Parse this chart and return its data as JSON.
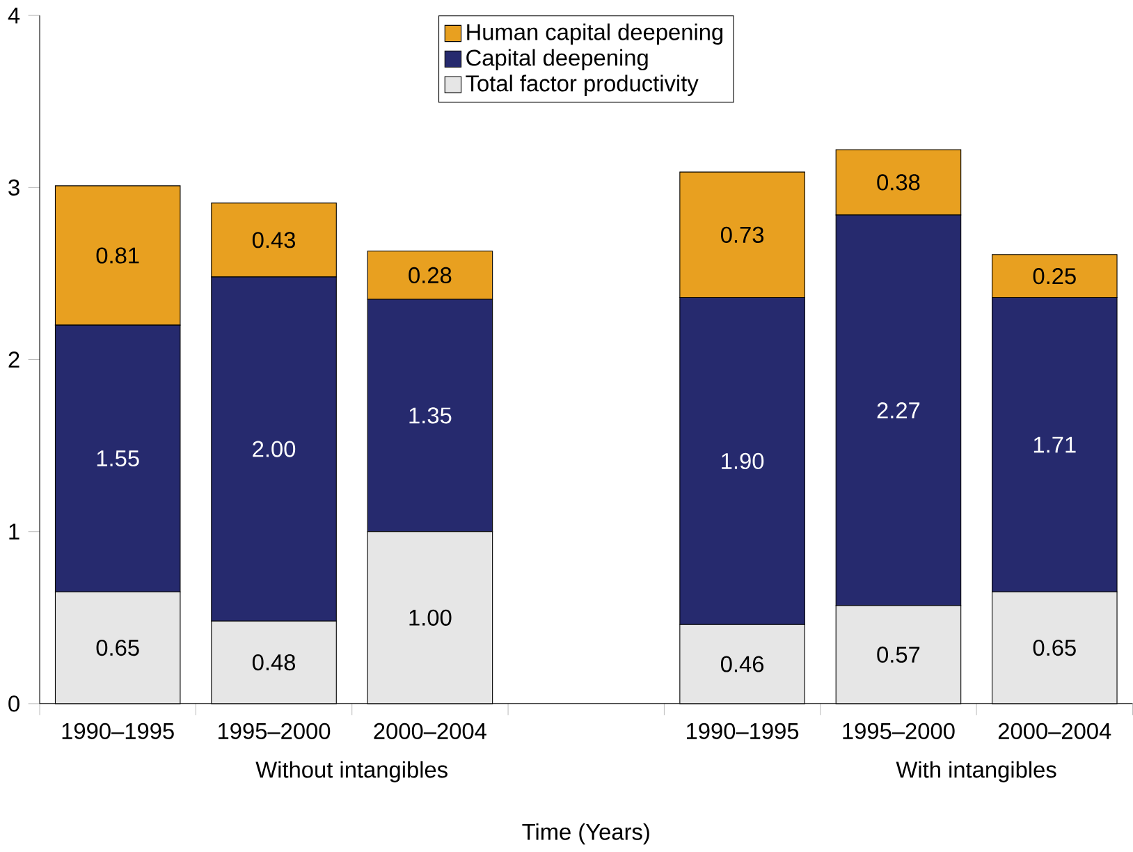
{
  "chart_data": {
    "type": "bar",
    "stacked": true,
    "xlabel": "Time (Years)",
    "categories": [
      "1990–1995",
      "1995–2000",
      "2000–2004",
      null,
      "1990–1995",
      "1995–2000",
      "2000–2004"
    ],
    "series": [
      {
        "name": "Total factor productivity",
        "color": "#e6e6e6",
        "values": [
          0.65,
          0.48,
          1.0,
          null,
          0.46,
          0.57,
          0.65
        ],
        "value_labels": [
          "0.65",
          "0.48",
          "1.00",
          null,
          "0.46",
          "0.57",
          "0.65"
        ]
      },
      {
        "name": "Capital deepening",
        "color": "#262a6e",
        "values": [
          1.55,
          2.0,
          1.35,
          null,
          1.9,
          2.27,
          1.71
        ],
        "value_labels": [
          "1.55",
          "2.00",
          "1.35",
          null,
          "1.90",
          "2.27",
          "1.71"
        ]
      },
      {
        "name": "Human capital deepening",
        "color": "#e8a020",
        "values": [
          0.81,
          0.43,
          0.28,
          null,
          0.73,
          0.38,
          0.25
        ],
        "value_labels": [
          "0.81",
          "0.43",
          "0.28",
          null,
          "0.73",
          "0.38",
          "0.25"
        ]
      }
    ],
    "ylim": [
      0,
      4
    ],
    "yticks": [
      0,
      1,
      2,
      3,
      4
    ],
    "grid": false,
    "legend": "top",
    "annotations": [
      "Without intangibles",
      "With intangibles"
    ]
  }
}
